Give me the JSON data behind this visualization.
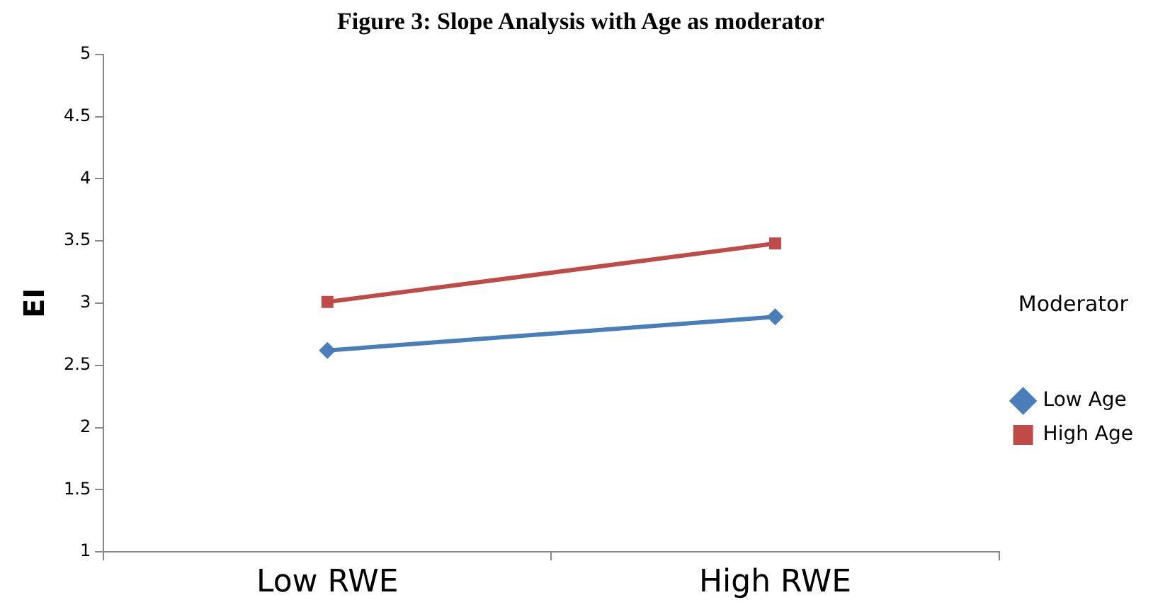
{
  "chart_data": {
    "type": "line",
    "title": "Figure 3: Slope Analysis with Age as moderator",
    "ylabel": "EI",
    "legend_title": "Moderator",
    "categories": [
      "Low RWE",
      "High RWE"
    ],
    "series": [
      {
        "name": "Low Age",
        "color": "#4a7ebb",
        "values": [
          2.62,
          2.89
        ],
        "marker": "diamond"
      },
      {
        "name": "High Age",
        "color": "#be4b48",
        "values": [
          3.01,
          3.48
        ],
        "marker": "square"
      }
    ],
    "ylim": [
      1,
      5
    ],
    "yticks": [
      1,
      1.5,
      2,
      2.5,
      3,
      3.5,
      4,
      4.5,
      5
    ],
    "grid": false,
    "legend": "right",
    "line_style": "solid"
  }
}
